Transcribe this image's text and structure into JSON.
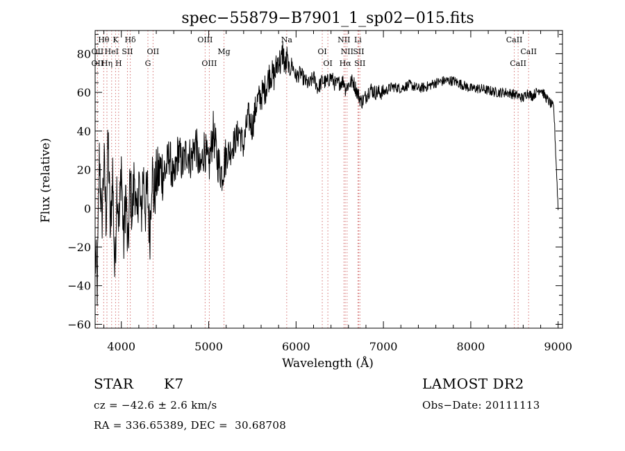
{
  "chart_data": {
    "type": "line",
    "title": "spec−55879−B7901_1_sp02−015.fits",
    "xlabel": "Wavelength (Å)",
    "ylabel": "Flux (relative)",
    "xlim": [
      3700,
      9050
    ],
    "ylim": [
      -62,
      92
    ],
    "x_ticks": [
      4000,
      5000,
      6000,
      7000,
      8000,
      9000
    ],
    "y_ticks": [
      -60,
      -40,
      -20,
      0,
      20,
      40,
      60,
      80
    ],
    "series": [
      {
        "x": [
          3700,
          3725,
          3750,
          3775,
          3800,
          3825,
          3850,
          3875,
          3900,
          3925,
          3950,
          3975,
          4000,
          4025,
          4050,
          4075,
          4100,
          4125,
          4150,
          4175,
          4200,
          4225,
          4250,
          4275,
          4300,
          4325,
          4350,
          4375,
          4400,
          4450,
          4500,
          4550,
          4600,
          4650,
          4700,
          4750,
          4800,
          4850,
          4900,
          4950,
          5000,
          5050,
          5100,
          5150,
          5200,
          5250,
          5300,
          5350,
          5400,
          5450,
          5500,
          5550,
          5600,
          5650,
          5700,
          5750,
          5800,
          5825,
          5850,
          5875,
          5900,
          5925,
          5950,
          6000,
          6050,
          6100,
          6150,
          6200,
          6250,
          6300,
          6350,
          6400,
          6450,
          6500,
          6550,
          6563,
          6600,
          6650,
          6700,
          6750,
          6800,
          6850,
          6900,
          7000,
          7100,
          7200,
          7300,
          7400,
          7500,
          7600,
          7700,
          7800,
          7900,
          8000,
          8100,
          8200,
          8300,
          8400,
          8500,
          8550,
          8600,
          8650,
          8700,
          8750,
          8800,
          8850,
          8900,
          8950,
          9000
        ],
        "values": [
          -25,
          -40,
          30,
          -10,
          25,
          -5,
          35,
          -15,
          20,
          -35,
          15,
          -10,
          25,
          -20,
          10,
          -25,
          15,
          -5,
          20,
          -12,
          18,
          -8,
          20,
          0,
          10,
          -15,
          22,
          5,
          15,
          20,
          18,
          28,
          12,
          30,
          22,
          30,
          25,
          35,
          18,
          32,
          20,
          40,
          25,
          18,
          28,
          30,
          35,
          40,
          32,
          48,
          42,
          55,
          58,
          62,
          70,
          68,
          78,
          74,
          82,
          72,
          78,
          70,
          75,
          68,
          70,
          66,
          64,
          68,
          62,
          66,
          65,
          68,
          64,
          65,
          66,
          62,
          64,
          66,
          60,
          55,
          58,
          62,
          60,
          60,
          63,
          62,
          64,
          62,
          63,
          65,
          66,
          66,
          64,
          62,
          62,
          61,
          60,
          60,
          59,
          58,
          57,
          60,
          58,
          60,
          62,
          58,
          55,
          52,
          0
        ]
      }
    ],
    "line_annotations": [
      {
        "label": "Hθ",
        "x": 3798,
        "row": 0
      },
      {
        "label": "K",
        "x": 3934,
        "row": 0
      },
      {
        "label": "Hδ",
        "x": 4102,
        "row": 0
      },
      {
        "label": "OII",
        "x": 3727,
        "row": 1
      },
      {
        "label": "HeI",
        "x": 3889,
        "row": 1
      },
      {
        "label": "SII",
        "x": 4070,
        "row": 1
      },
      {
        "label": "OII",
        "x": 4363,
        "row": 1
      },
      {
        "label": "OII",
        "x": 3727,
        "row": 2
      },
      {
        "label": "Hη",
        "x": 3835,
        "row": 2
      },
      {
        "label": "H",
        "x": 3969,
        "row": 2
      },
      {
        "label": "G",
        "x": 4304,
        "row": 2
      },
      {
        "label": "OIII",
        "x": 4959,
        "row": 0
      },
      {
        "label": "Mg",
        "x": 5175,
        "row": 1
      },
      {
        "label": "OIII",
        "x": 5007,
        "row": 2
      },
      {
        "label": "Na",
        "x": 5893,
        "row": 0
      },
      {
        "label": "OI",
        "x": 6300,
        "row": 1
      },
      {
        "label": "OI",
        "x": 6364,
        "row": 2
      },
      {
        "label": "NII",
        "x": 6548,
        "row": 0
      },
      {
        "label": "Li",
        "x": 6708,
        "row": 0
      },
      {
        "label": "NII",
        "x": 6584,
        "row": 1
      },
      {
        "label": "SII",
        "x": 6717,
        "row": 1
      },
      {
        "label": "Hα",
        "x": 6563,
        "row": 2
      },
      {
        "label": "SII",
        "x": 6731,
        "row": 2
      },
      {
        "label": "CaII",
        "x": 8498,
        "row": 0
      },
      {
        "label": "CaII",
        "x": 8662,
        "row": 1
      },
      {
        "label": "CaII",
        "x": 8542,
        "row": 2
      }
    ]
  },
  "footer": {
    "object_class": "STAR",
    "subclass": "K7",
    "survey": "LAMOST DR2",
    "redshift": "cz = −42.6 ± 2.6 km/s",
    "obs_date": "Obs−Date: 20111113",
    "coords": "RA = 336.65389, DEC =  30.68708"
  }
}
